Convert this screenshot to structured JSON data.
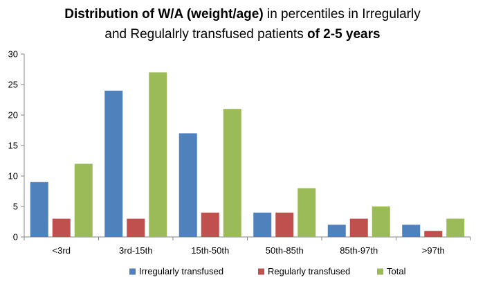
{
  "chart_data": {
    "type": "bar",
    "title_line1": [
      {
        "text": "Distribution of W/A (weight/age)",
        "bold": true
      },
      {
        "text": " in percentiles in Irregularly",
        "bold": false
      }
    ],
    "title_line2": [
      {
        "text": "and Regulalrly transfused patients ",
        "bold": false
      },
      {
        "text": "of 2-5 years",
        "bold": true
      }
    ],
    "categories": [
      "<3rd",
      "3rd-15th",
      "15th-50th",
      "50th-85th",
      "85th-97th",
      ">97th"
    ],
    "series": [
      {
        "name": "Irregularly transfused",
        "color": "#4F81BD",
        "values": [
          9,
          24,
          17,
          4,
          2,
          2
        ]
      },
      {
        "name": "Regularly transfused",
        "color": "#C0504D",
        "values": [
          3,
          3,
          4,
          4,
          3,
          1
        ]
      },
      {
        "name": "Total",
        "color": "#9BBB59",
        "values": [
          12,
          27,
          21,
          8,
          5,
          3
        ]
      }
    ],
    "ylim": [
      0,
      30
    ],
    "yticks": [
      0,
      5,
      10,
      15,
      20,
      25,
      30
    ],
    "grid": false,
    "legend_position": "bottom"
  }
}
